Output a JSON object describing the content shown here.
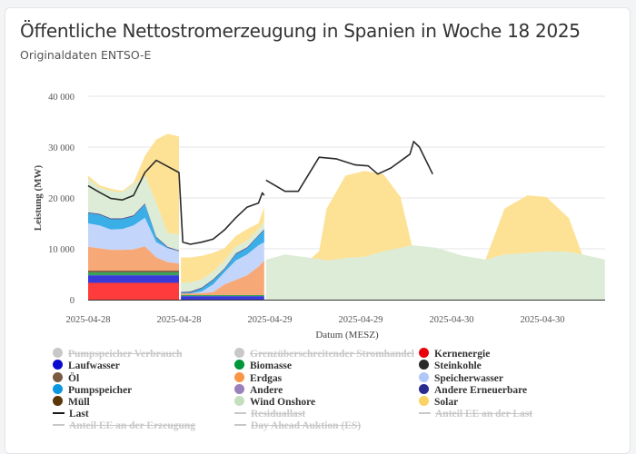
{
  "title": "Öffentliche Nettostromerzeugung in Spanien in Woche 18 2025",
  "subtitle": "Originaldaten ENTSO-E",
  "chart_data": {
    "type": "area",
    "stacked": true,
    "title": "Öffentliche Nettostromerzeugung in Spanien in Woche 18 2025",
    "subtitle": "Originaldaten ENTSO-E",
    "xlabel": "Datum (MESZ)",
    "ylabel": "Leistung (MW)",
    "ylim": [
      0,
      40000
    ],
    "yticks": [
      0,
      10000,
      20000,
      30000,
      40000
    ],
    "ytick_labels": [
      "0",
      "10 000",
      "20 000",
      "30 000",
      "40 000"
    ],
    "xtick_labels": [
      "2025-04-28",
      "2025-04-28",
      "2025-04-29",
      "2025-04-29",
      "2025-04-30",
      "2025-04-30"
    ],
    "xticks": [
      "2025-04-28 00:00",
      "2025-04-28 12:00",
      "2025-04-29 00:00",
      "2025-04-29 12:00",
      "2025-04-30 00:00",
      "2025-04-30 12:00"
    ],
    "xlim": [
      "2025-04-28 00:00",
      "2025-04-30 20:15"
    ],
    "grid": true,
    "legend_position": "bottom",
    "stack_order": [
      "Kernenergie",
      "Laufwasser",
      "Biomasse",
      "Müll",
      "Erdgas",
      "Speicherwasser",
      "Pumpspeicher",
      "Andere Erneuerbare",
      "Wind Onshore",
      "Solar"
    ],
    "segments": [
      {
        "t": [
          "2025-04-28 00:00",
          "2025-04-28 01:30",
          "2025-04-28 03:00",
          "2025-04-28 04:30",
          "2025-04-28 06:00",
          "2025-04-28 07:30",
          "2025-04-28 09:00",
          "2025-04-28 10:30",
          "2025-04-28 12:00"
        ],
        "values": {
          "Kernenergie": [
            3300,
            3300,
            3300,
            3300,
            3300,
            3300,
            3300,
            3300,
            3300
          ],
          "Laufwasser": [
            1500,
            1500,
            1500,
            1500,
            1500,
            1500,
            1500,
            1500,
            1500
          ],
          "Biomasse": [
            600,
            600,
            600,
            600,
            600,
            600,
            600,
            600,
            600
          ],
          "Müll": [
            300,
            300,
            300,
            300,
            300,
            300,
            300,
            300,
            300
          ],
          "Erdgas": [
            4700,
            4400,
            4100,
            4100,
            4200,
            4800,
            2600,
            1700,
            1400
          ],
          "Speicherwasser": [
            4600,
            4500,
            4000,
            4100,
            4700,
            5600,
            3000,
            2700,
            2400
          ],
          "Pumpspeicher": [
            2000,
            2100,
            2000,
            1900,
            1800,
            2650,
            900,
            100,
            0
          ],
          "Andere Erneuerbare": [
            200,
            200,
            200,
            200,
            200,
            200,
            200,
            200,
            200
          ],
          "Wind Onshore": [
            6600,
            5100,
            5400,
            5100,
            6000,
            5450,
            6600,
            2700,
            3100
          ],
          "Solar": [
            600,
            500,
            400,
            300,
            400,
            3900,
            12500,
            19500,
            19300
          ]
        }
      },
      {
        "t": [
          "2025-04-28 12:15",
          "2025-04-28 13:30",
          "2025-04-28 15:00",
          "2025-04-28 16:30",
          "2025-04-28 18:00",
          "2025-04-28 19:30",
          "2025-04-28 21:00",
          "2025-04-28 22:30",
          "2025-04-28 23:15"
        ],
        "values": {
          "Kernenergie": [
            0,
            0,
            0,
            0,
            0,
            0,
            0,
            0,
            0
          ],
          "Laufwasser": [
            700,
            700,
            700,
            700,
            700,
            700,
            700,
            700,
            700
          ],
          "Biomasse": [
            200,
            200,
            200,
            200,
            200,
            200,
            200,
            200,
            200
          ],
          "Müll": [
            0,
            0,
            0,
            0,
            0,
            0,
            0,
            0,
            0
          ],
          "Erdgas": [
            300,
            300,
            400,
            600,
            2100,
            3000,
            3900,
            5600,
            6800
          ],
          "Speicherwasser": [
            0,
            0,
            300,
            1500,
            2400,
            3800,
            4100,
            4200,
            3600
          ],
          "Pumpspeicher": [
            100,
            200,
            600,
            800,
            550,
            1200,
            1200,
            1800,
            2400
          ],
          "Andere Erneuerbare": [
            200,
            200,
            200,
            200,
            200,
            200,
            200,
            200,
            200
          ],
          "Wind Onshore": [
            1800,
            1800,
            1600,
            1500,
            1500,
            1300,
            1300,
            1200,
            1300
          ],
          "Solar": [
            5000,
            4900,
            4600,
            3700,
            2450,
            2100,
            2300,
            1100,
            3000
          ]
        }
      },
      {
        "t": [
          "2025-04-28 23:30",
          "2025-04-29 02:00",
          "2025-04-29 05:30",
          "2025-04-29 06:30",
          "2025-04-29 07:30",
          "2025-04-29 10:00",
          "2025-04-29 12:30",
          "2025-04-29 15:00",
          "2025-04-29 17:15",
          "2025-04-29 18:45",
          "2025-04-29 22:00",
          "2025-04-30 01:30",
          "2025-04-30 04:30",
          "2025-04-30 07:00",
          "2025-04-30 10:00",
          "2025-04-30 12:30",
          "2025-04-30 15:30",
          "2025-04-30 17:15",
          "2025-04-30 20:15"
        ],
        "values": {
          "Wind Onshore": [
            7850,
            8900,
            8200,
            8000,
            7700,
            8200,
            8450,
            9500,
            10200,
            10700,
            10200,
            8600,
            7900,
            8900,
            9200,
            9500,
            9400,
            8900,
            7900
          ],
          "Solar": [
            0,
            0,
            0,
            1500,
            10200,
            16200,
            16850,
            15200,
            10000,
            0,
            0,
            0,
            0,
            9000,
            11300,
            10700,
            6600,
            0,
            0
          ]
        }
      }
    ],
    "lines": [
      {
        "name": "Last",
        "segments": [
          {
            "t": [
              "2025-04-28 00:00",
              "2025-04-28 01:30",
              "2025-04-28 03:00",
              "2025-04-28 04:30",
              "2025-04-28 06:00",
              "2025-04-28 07:30",
              "2025-04-28 09:00",
              "2025-04-28 10:30",
              "2025-04-28 12:00",
              "2025-04-28 12:30",
              "2025-04-28 13:30",
              "2025-04-28 15:00",
              "2025-04-28 16:30",
              "2025-04-28 18:00",
              "2025-04-28 19:30",
              "2025-04-28 21:00",
              "2025-04-28 22:30",
              "2025-04-28 23:00",
              "2025-04-28 23:15"
            ],
            "v": [
              22400,
              21100,
              19900,
              19600,
              20500,
              25000,
              27400,
              26200,
              25000,
              11300,
              10900,
              11300,
              11900,
              13700,
              16100,
              18200,
              19000,
              21000,
              20500
            ]
          },
          {
            "t": [
              "2025-04-28 23:30",
              "2025-04-29 02:00",
              "2025-04-29 03:45",
              "2025-04-29 06:30",
              "2025-04-29 08:45",
              "2025-04-29 11:15",
              "2025-04-29 13:00",
              "2025-04-29 14:15",
              "2025-04-29 16:00",
              "2025-04-29 18:30",
              "2025-04-29 19:00",
              "2025-04-29 19:45",
              "2025-04-29 21:30"
            ],
            "v": [
              23500,
              21300,
              21300,
              28000,
              27700,
              26500,
              26300,
              24700,
              25900,
              28600,
              31100,
              30000,
              24700
            ]
          }
        ]
      }
    ],
    "legend": [
      {
        "name": "Pumpspeicher Verbrauch",
        "color": "#c8c8c8",
        "marker": "dot",
        "hidden": true
      },
      {
        "name": "Grenzüberschreitender Stromhandel",
        "color": "#c8c8c8",
        "marker": "dot",
        "hidden": true
      },
      {
        "name": "Kernenergie",
        "color": "#e8000b",
        "marker": "dot",
        "hidden": false
      },
      {
        "name": "Laufwasser",
        "color": "#0b0bd0",
        "marker": "dot",
        "hidden": false
      },
      {
        "name": "Biomasse",
        "color": "#00963a",
        "marker": "dot",
        "hidden": false
      },
      {
        "name": "Steinkohle",
        "color": "#2a2a2a",
        "marker": "dot",
        "hidden": false
      },
      {
        "name": "Öl",
        "color": "#7a5a40",
        "marker": "dot",
        "hidden": false
      },
      {
        "name": "Erdgas",
        "color": "#f79646",
        "marker": "dot",
        "hidden": false
      },
      {
        "name": "Speicherwasser",
        "color": "#b0c8f8",
        "marker": "dot",
        "hidden": false
      },
      {
        "name": "Pumpspeicher",
        "color": "#0b98e0",
        "marker": "dot",
        "hidden": false
      },
      {
        "name": "Andere",
        "color": "#9a80bc",
        "marker": "dot",
        "hidden": false
      },
      {
        "name": "Andere Erneuerbare",
        "color": "#2a2a90",
        "marker": "dot",
        "hidden": false
      },
      {
        "name": "Müll",
        "color": "#5a3608",
        "marker": "dot",
        "hidden": false
      },
      {
        "name": "Wind Onshore",
        "color": "#c4dfbd",
        "marker": "dot",
        "hidden": false
      },
      {
        "name": "Solar",
        "color": "#fdd264",
        "marker": "dot",
        "hidden": false
      },
      {
        "name": "Last",
        "color": "#1a1a1a",
        "marker": "line",
        "hidden": false
      },
      {
        "name": "Residuallast",
        "color": "#c8c8c8",
        "marker": "line",
        "hidden": true
      },
      {
        "name": "Anteil EE an der Last",
        "color": "#c8c8c8",
        "marker": "line",
        "hidden": true
      },
      {
        "name": "Anteil EE an der Erzeugung",
        "color": "#c8c8c8",
        "marker": "line",
        "hidden": true
      },
      {
        "name": "Day Ahead Auktion (ES)",
        "color": "#c8c8c8",
        "marker": "line",
        "hidden": true
      }
    ],
    "area_colors": {
      "Kernenergie": "#ff3b3b",
      "Laufwasser": "#3a3ad8",
      "Biomasse": "#3aa35a",
      "Müll": "#6a4a2a",
      "Erdgas": "#f7a877",
      "Speicherwasser": "#c3d5fb",
      "Pumpspeicher": "#3aaee6",
      "Andere Erneuerbare": "#55558f",
      "Wind Onshore": "#dcecd6",
      "Solar": "#fde194"
    }
  }
}
